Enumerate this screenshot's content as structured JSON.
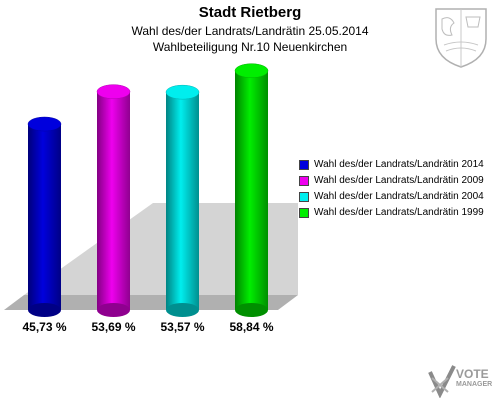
{
  "header": {
    "title": "Stadt Rietberg",
    "subtitle1": "Wahl des/der Landrats/Landrätin 25.05.2014",
    "subtitle2": "Wahlbeteiligung Nr.10 Neuenkirchen"
  },
  "chart_data": {
    "type": "bar",
    "categories": [
      "45,73 %",
      "53,69 %",
      "53,57 %",
      "58,84 %"
    ],
    "series": [
      {
        "name": "Wahl des/der Landrats/Landrätin 2014",
        "value": 45.73,
        "label": "45,73 %",
        "color": "#0000dd"
      },
      {
        "name": "Wahl des/der Landrats/Landrätin 2009",
        "value": 53.69,
        "label": "53,69 %",
        "color": "#ee00ee"
      },
      {
        "name": "Wahl des/der Landrats/Landrätin 2004",
        "value": 53.57,
        "label": "53,57 %",
        "color": "#00eeee"
      },
      {
        "name": "Wahl des/der Landrats/Landrätin 1999",
        "value": 58.84,
        "label": "58,84 %",
        "color": "#00ee00"
      }
    ],
    "ylim": [
      0,
      60
    ],
    "grid": false,
    "legend_position": "right"
  },
  "logo": {
    "line1": "VOTE",
    "line2": "MANAGER"
  }
}
